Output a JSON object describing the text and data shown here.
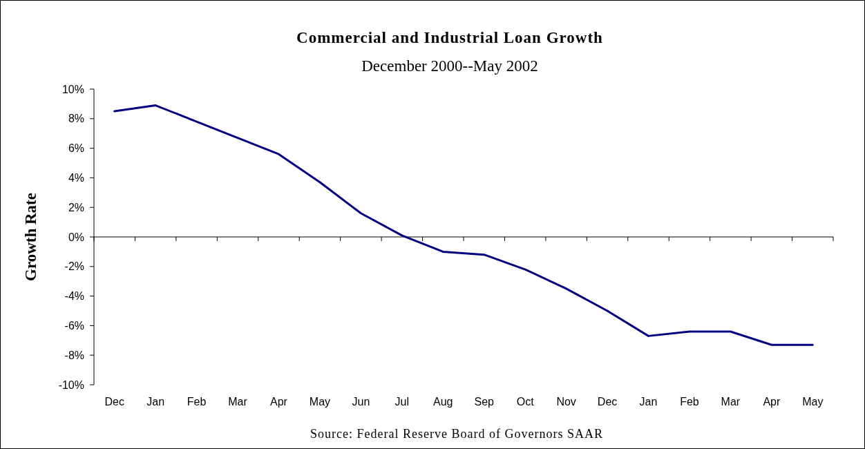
{
  "chart_data": {
    "type": "line",
    "title": "Commercial and Industrial Loan Growth",
    "subtitle": "December 2000--May 2002",
    "ylabel": "Growth Rate",
    "categories": [
      "Dec",
      "Jan",
      "Feb",
      "Mar",
      "Apr",
      "May",
      "Jun",
      "Jul",
      "Aug",
      "Sep",
      "Oct",
      "Nov",
      "Dec",
      "Jan",
      "Feb",
      "Mar",
      "Apr",
      "May"
    ],
    "series": [
      {
        "color": "#000080",
        "values": [
          8.5,
          8.9,
          7.8,
          6.7,
          5.6,
          3.7,
          1.6,
          0.1,
          -1.0,
          -1.2,
          -2.2,
          -3.5,
          -5.0,
          -6.7,
          -6.4,
          -6.4,
          -7.3,
          -7.3
        ]
      }
    ],
    "ylim": [
      -10,
      10
    ],
    "yticks": [
      {
        "value": -10,
        "label": "-10%"
      },
      {
        "value": -8,
        "label": "-8%"
      },
      {
        "value": -6,
        "label": "-6%"
      },
      {
        "value": -4,
        "label": "-4%"
      },
      {
        "value": -2,
        "label": "-2%"
      },
      {
        "value": 0,
        "label": "0%"
      },
      {
        "value": 2,
        "label": "2%"
      },
      {
        "value": 4,
        "label": "4%"
      },
      {
        "value": 6,
        "label": "6%"
      },
      {
        "value": 8,
        "label": "8%"
      },
      {
        "value": 10,
        "label": "10%"
      }
    ],
    "annotations": [
      "Source: Federal Reserve Board of Governors SAAR"
    ],
    "marker": "none",
    "line_style": "solid"
  }
}
